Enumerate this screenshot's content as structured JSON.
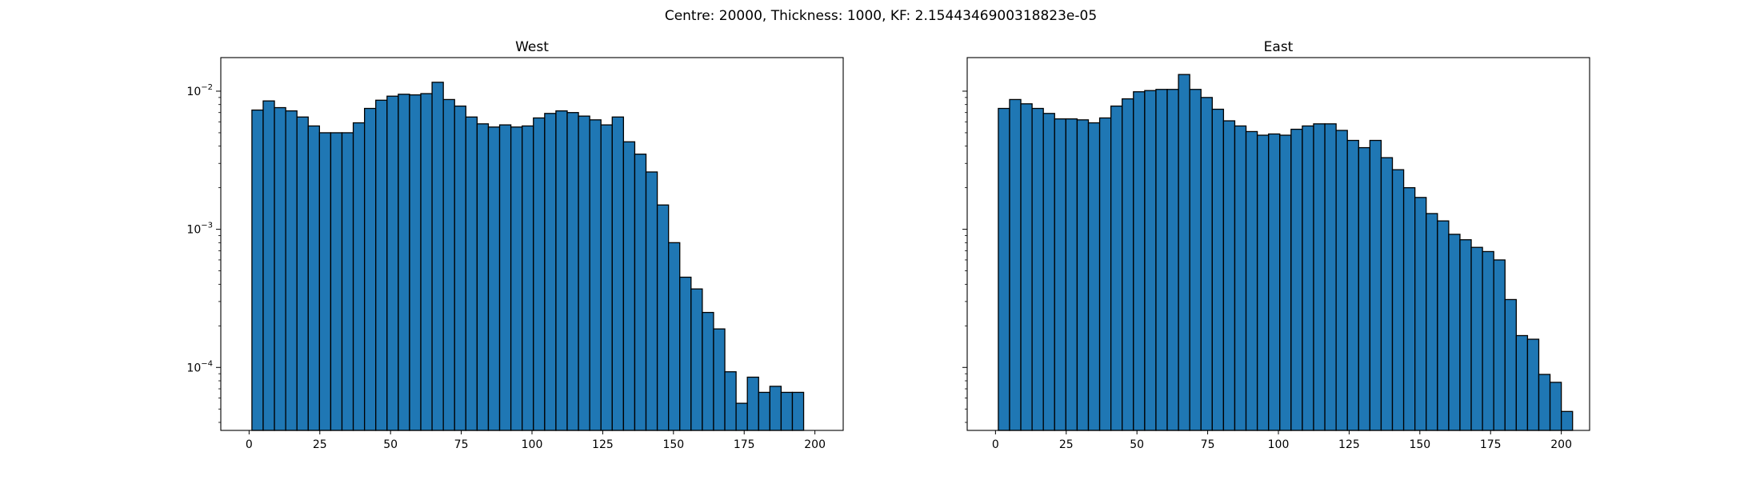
{
  "figure": {
    "suptitle": "Centre: 20000, Thickness: 1000, KF: 2.1544346900318823e-05"
  },
  "style": {
    "bar_fill": "#1f77b4",
    "bar_edge": "#000000",
    "axis_color": "#000000",
    "background": "#ffffff"
  },
  "chart_data": [
    {
      "type": "bar",
      "histogram": true,
      "title": "West",
      "xlabel": "",
      "ylabel": "",
      "xscale": "linear",
      "yscale": "log",
      "xlim": [
        -10,
        210
      ],
      "ylim": [
        3.5e-05,
        0.0175
      ],
      "xticks": [
        0,
        25,
        50,
        75,
        100,
        125,
        150,
        175,
        200
      ],
      "yticks": [
        {
          "value": 0.0001,
          "base": "10",
          "exp": "−4"
        },
        {
          "value": 0.001,
          "base": "10",
          "exp": "−3"
        },
        {
          "value": 0.01,
          "base": "10",
          "exp": "−2"
        }
      ],
      "bin_start": 1,
      "bin_width": 3.98,
      "values": [
        0.0073,
        0.0085,
        0.0076,
        0.0072,
        0.0065,
        0.0056,
        0.005,
        0.005,
        0.005,
        0.0059,
        0.0075,
        0.0086,
        0.0092,
        0.0095,
        0.0094,
        0.0096,
        0.0116,
        0.0087,
        0.0078,
        0.0065,
        0.0058,
        0.0055,
        0.0057,
        0.0055,
        0.0056,
        0.0064,
        0.0069,
        0.0072,
        0.007,
        0.0066,
        0.0062,
        0.0057,
        0.0065,
        0.0043,
        0.0035,
        0.0026,
        0.0015,
        0.0008,
        0.00045,
        0.00037,
        0.00025,
        0.00019,
        9.3e-05,
        5.5e-05,
        8.5e-05,
        6.6e-05,
        7.3e-05,
        6.6e-05,
        6.6e-05
      ]
    },
    {
      "type": "bar",
      "histogram": true,
      "title": "East",
      "xlabel": "",
      "ylabel": "",
      "xscale": "linear",
      "yscale": "log",
      "sharey": true,
      "xlim": [
        -10,
        210
      ],
      "ylim": [
        3.5e-05,
        0.0175
      ],
      "xticks": [
        0,
        25,
        50,
        75,
        100,
        125,
        150,
        175,
        200
      ],
      "yticks": [
        {
          "value": 0.0001,
          "base": "10",
          "exp": "−4"
        },
        {
          "value": 0.001,
          "base": "10",
          "exp": "−3"
        },
        {
          "value": 0.01,
          "base": "10",
          "exp": "−2"
        }
      ],
      "bin_start": 1,
      "bin_width": 3.98,
      "values": [
        0.0075,
        0.0087,
        0.0081,
        0.0075,
        0.0069,
        0.0063,
        0.0063,
        0.0062,
        0.0059,
        0.0064,
        0.0078,
        0.0088,
        0.0099,
        0.0101,
        0.0103,
        0.0103,
        0.0132,
        0.0103,
        0.009,
        0.0074,
        0.0061,
        0.0056,
        0.0051,
        0.0048,
        0.0049,
        0.0048,
        0.0053,
        0.0056,
        0.0058,
        0.0058,
        0.0052,
        0.0044,
        0.0039,
        0.0044,
        0.0033,
        0.0027,
        0.002,
        0.0017,
        0.0013,
        0.00115,
        0.00092,
        0.00084,
        0.00074,
        0.00069,
        0.0006,
        0.00031,
        0.00017,
        0.00016,
        8.9e-05,
        7.8e-05,
        4.8e-05
      ]
    }
  ]
}
